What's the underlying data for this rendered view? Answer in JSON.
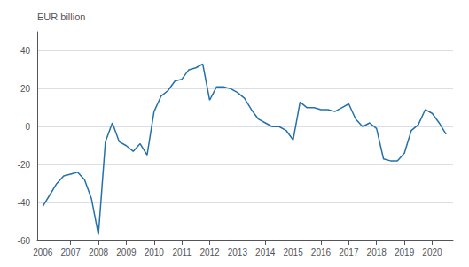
{
  "chart_data": {
    "type": "line",
    "ylabel": "EUR billion",
    "color": "#2471a8",
    "grid": "y",
    "xlim": [
      2005.8,
      2020.75
    ],
    "xticks": [
      2006,
      2007,
      2008,
      2009,
      2010,
      2011,
      2012,
      2013,
      2014,
      2015,
      2016,
      2017,
      2018,
      2019,
      2020
    ],
    "ylim": [
      -60,
      50
    ],
    "yticks": [
      -60,
      -40,
      -20,
      0,
      20,
      40
    ],
    "x": [
      2006.0,
      2006.25,
      2006.5,
      2006.75,
      2007.0,
      2007.25,
      2007.5,
      2007.75,
      2008.0,
      2008.25,
      2008.5,
      2008.75,
      2009.0,
      2009.25,
      2009.5,
      2009.75,
      2010.0,
      2010.25,
      2010.5,
      2010.75,
      2011.0,
      2011.25,
      2011.5,
      2011.75,
      2012.0,
      2012.25,
      2012.5,
      2012.75,
      2013.0,
      2013.25,
      2013.5,
      2013.75,
      2014.0,
      2014.25,
      2014.5,
      2014.75,
      2015.0,
      2015.25,
      2015.5,
      2015.75,
      2016.0,
      2016.25,
      2016.5,
      2016.75,
      2017.0,
      2017.25,
      2017.5,
      2017.75,
      2018.0,
      2018.25,
      2018.5,
      2018.75,
      2019.0,
      2019.25,
      2019.5,
      2019.75,
      2020.0,
      2020.25,
      2020.5
    ],
    "values": [
      -42,
      -36,
      -30,
      -26,
      -25,
      -24,
      -28,
      -38,
      -57,
      -8,
      2,
      -8,
      -10,
      -13,
      -9,
      -15,
      8,
      16,
      19,
      24,
      25,
      30,
      31,
      33,
      14,
      21,
      21,
      20,
      18,
      15,
      9,
      4,
      2,
      0,
      0,
      -2,
      -7,
      13,
      10,
      10,
      9,
      9,
      8,
      10,
      12,
      4,
      0,
      2,
      -1,
      -17,
      -18,
      -18,
      -14,
      -2,
      1,
      9,
      7,
      2,
      -4
    ]
  }
}
